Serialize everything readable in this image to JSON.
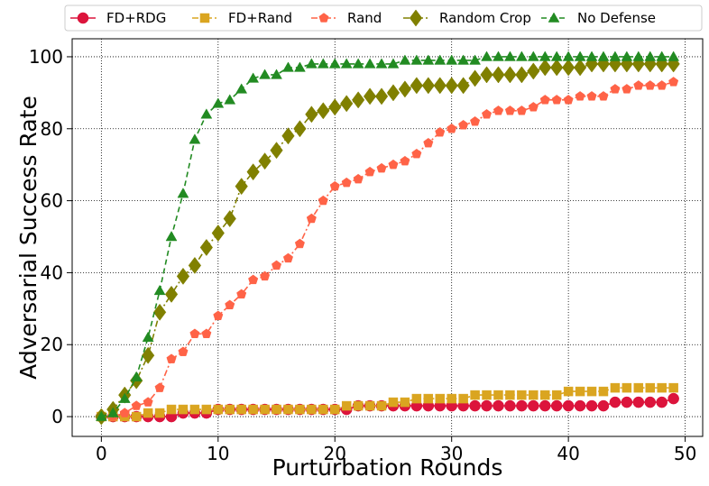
{
  "chart_data": {
    "type": "line",
    "title": "",
    "xlabel": "Purturbation Rounds",
    "ylabel": "Adversarial Success Rate",
    "xlim": [
      -2.5,
      51.5
    ],
    "ylim": [
      -5.5,
      105
    ],
    "xticks": [
      0,
      10,
      20,
      30,
      40,
      50
    ],
    "yticks": [
      0,
      20,
      40,
      60,
      80,
      100
    ],
    "grid": true,
    "legend_position": "top",
    "series": [
      {
        "name": "FD+RDG",
        "color": "#dc143c",
        "marker": "circle",
        "linestyle": "solid",
        "x": [
          0,
          1,
          2,
          3,
          4,
          5,
          6,
          7,
          8,
          9,
          10,
          11,
          12,
          13,
          14,
          15,
          16,
          17,
          18,
          19,
          20,
          21,
          22,
          23,
          24,
          25,
          26,
          27,
          28,
          29,
          30,
          31,
          32,
          33,
          34,
          35,
          36,
          37,
          38,
          39,
          40,
          41,
          42,
          43,
          44,
          45,
          46,
          47,
          48,
          49
        ],
        "values": [
          0,
          0,
          0,
          0,
          0,
          0,
          0,
          1,
          1,
          1,
          2,
          2,
          2,
          2,
          2,
          2,
          2,
          2,
          2,
          2,
          2,
          2,
          3,
          3,
          3,
          3,
          3,
          3,
          3,
          3,
          3,
          3,
          3,
          3,
          3,
          3,
          3,
          3,
          3,
          3,
          3,
          3,
          3,
          3,
          4,
          4,
          4,
          4,
          4,
          5
        ]
      },
      {
        "name": "FD+Rand",
        "color": "#daa520",
        "marker": "square",
        "linestyle": "dashdot",
        "x": [
          0,
          1,
          2,
          3,
          4,
          5,
          6,
          7,
          8,
          9,
          10,
          11,
          12,
          13,
          14,
          15,
          16,
          17,
          18,
          19,
          20,
          21,
          22,
          23,
          24,
          25,
          26,
          27,
          28,
          29,
          30,
          31,
          32,
          33,
          34,
          35,
          36,
          37,
          38,
          39,
          40,
          41,
          42,
          43,
          44,
          45,
          46,
          47,
          48,
          49
        ],
        "values": [
          0,
          0,
          0,
          0,
          1,
          1,
          2,
          2,
          2,
          2,
          2,
          2,
          2,
          2,
          2,
          2,
          2,
          2,
          2,
          2,
          2,
          3,
          3,
          3,
          3,
          4,
          4,
          5,
          5,
          5,
          5,
          5,
          6,
          6,
          6,
          6,
          6,
          6,
          6,
          6,
          7,
          7,
          7,
          7,
          8,
          8,
          8,
          8,
          8,
          8
        ]
      },
      {
        "name": "Rand",
        "color": "#ff6347",
        "marker": "pentagon",
        "linestyle": "dashdot",
        "x": [
          0,
          1,
          2,
          3,
          4,
          5,
          6,
          7,
          8,
          9,
          10,
          11,
          12,
          13,
          14,
          15,
          16,
          17,
          18,
          19,
          20,
          21,
          22,
          23,
          24,
          25,
          26,
          27,
          28,
          29,
          30,
          31,
          32,
          33,
          34,
          35,
          36,
          37,
          38,
          39,
          40,
          41,
          42,
          43,
          44,
          45,
          46,
          47,
          48,
          49
        ],
        "values": [
          0,
          0,
          1,
          3,
          4,
          8,
          16,
          18,
          23,
          23,
          28,
          31,
          34,
          38,
          39,
          42,
          44,
          48,
          55,
          60,
          64,
          65,
          66,
          68,
          69,
          70,
          71,
          73,
          76,
          79,
          80,
          81,
          82,
          84,
          85,
          85,
          85,
          86,
          88,
          88,
          88,
          89,
          89,
          89,
          91,
          91,
          92,
          92,
          92,
          93
        ]
      },
      {
        "name": "Random Crop",
        "color": "#808000",
        "marker": "diamond",
        "linestyle": "dashdot",
        "x": [
          0,
          1,
          2,
          3,
          4,
          5,
          6,
          7,
          8,
          9,
          10,
          11,
          12,
          13,
          14,
          15,
          16,
          17,
          18,
          19,
          20,
          21,
          22,
          23,
          24,
          25,
          26,
          27,
          28,
          29,
          30,
          31,
          32,
          33,
          34,
          35,
          36,
          37,
          38,
          39,
          40,
          41,
          42,
          43,
          44,
          45,
          46,
          47,
          48,
          49
        ],
        "values": [
          0,
          2,
          6,
          10,
          17,
          29,
          34,
          39,
          42,
          47,
          51,
          55,
          64,
          68,
          71,
          74,
          78,
          80,
          84,
          85,
          86,
          87,
          88,
          89,
          89,
          90,
          91,
          92,
          92,
          92,
          92,
          92,
          94,
          95,
          95,
          95,
          95,
          96,
          97,
          97,
          97,
          97,
          98,
          98,
          98,
          98,
          98,
          98,
          98,
          98
        ]
      },
      {
        "name": "No Defense",
        "color": "#228b22",
        "marker": "triangle",
        "linestyle": "dashed",
        "x": [
          0,
          1,
          2,
          3,
          4,
          5,
          6,
          7,
          8,
          9,
          10,
          11,
          12,
          13,
          14,
          15,
          16,
          17,
          18,
          19,
          20,
          21,
          22,
          23,
          24,
          25,
          26,
          27,
          28,
          29,
          30,
          31,
          32,
          33,
          34,
          35,
          36,
          37,
          38,
          39,
          40,
          41,
          42,
          43,
          44,
          45,
          46,
          47,
          48,
          49
        ],
        "values": [
          0,
          1,
          5,
          11,
          22,
          35,
          50,
          62,
          77,
          84,
          87,
          88,
          91,
          94,
          95,
          95,
          97,
          97,
          98,
          98,
          98,
          98,
          98,
          98,
          98,
          98,
          99,
          99,
          99,
          99,
          99,
          99,
          99,
          100,
          100,
          100,
          100,
          100,
          100,
          100,
          100,
          100,
          100,
          100,
          100,
          100,
          100,
          100,
          100,
          100
        ]
      }
    ]
  }
}
